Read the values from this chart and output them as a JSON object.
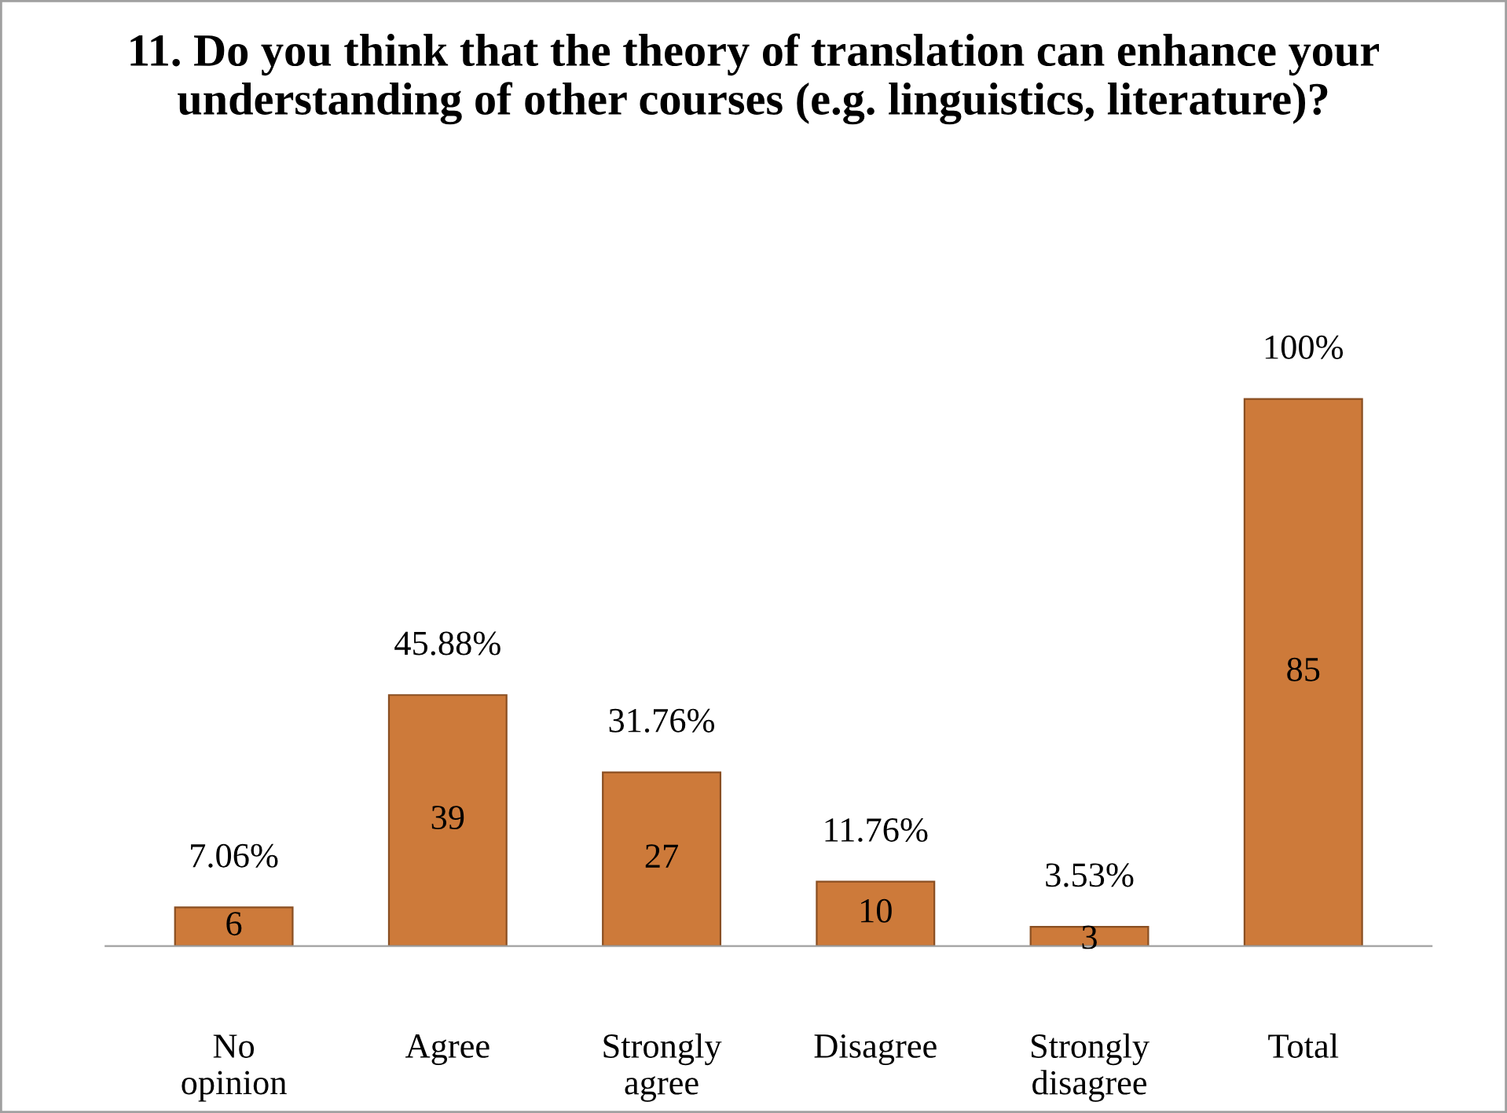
{
  "chart_data": {
    "type": "bar",
    "title": "11. Do you think that the theory of translation can enhance your understanding of other courses (e.g. linguistics, literature)?",
    "categories": [
      "No opinion",
      "Agree",
      "Strongly agree",
      "Disagree",
      "Strongly disagree",
      "Total"
    ],
    "values": [
      6,
      39,
      27,
      10,
      3,
      85
    ],
    "annotations": [
      {
        "text": "7.06%",
        "x": "No opinion",
        "y": 6
      },
      {
        "text": "45.88%",
        "x": "Agree",
        "y": 39
      },
      {
        "text": "31.76%",
        "x": "Strongly agree",
        "y": 27
      },
      {
        "text": "11.76%",
        "x": "Disagree",
        "y": 10
      },
      {
        "text": "3.53%",
        "x": "Strongly disagree",
        "y": 3
      },
      {
        "text": "100%",
        "x": "Total",
        "y": 85
      }
    ],
    "color": "#cd7a3a",
    "data_labels": true,
    "grid": false,
    "legend": false
  }
}
